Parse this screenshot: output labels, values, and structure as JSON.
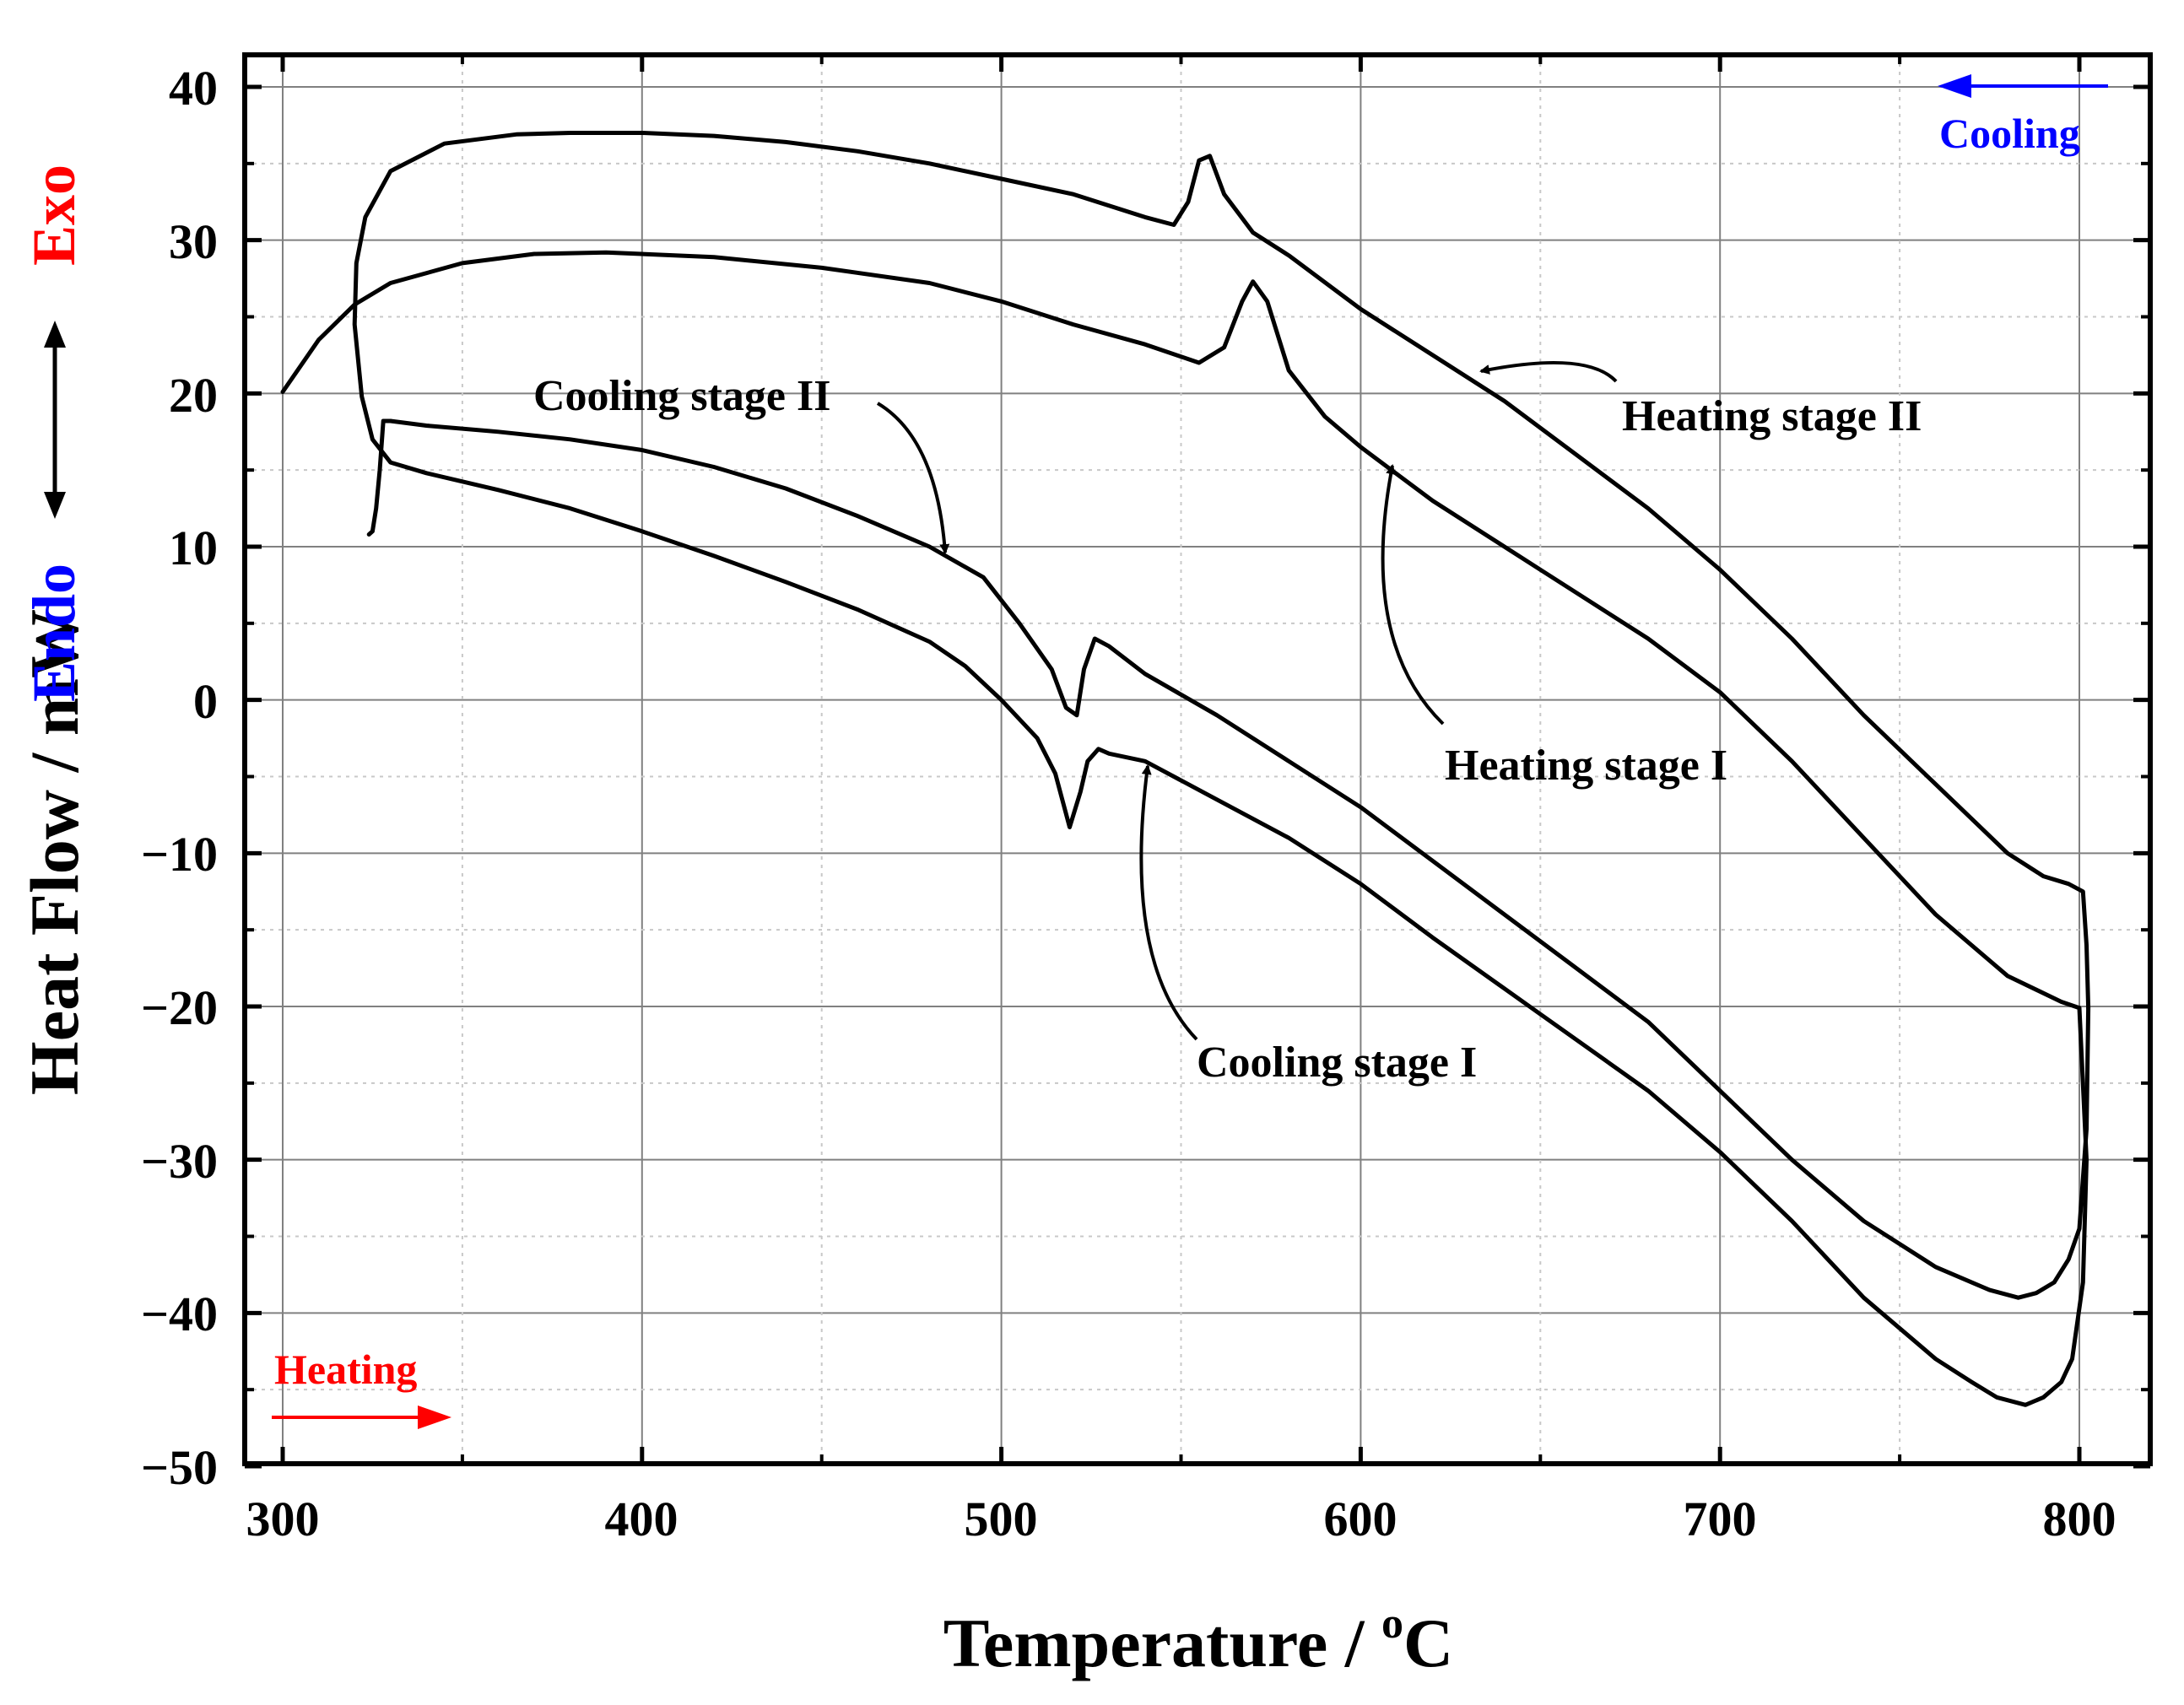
{
  "chart_data": {
    "type": "line",
    "title": "",
    "xlabel": "Temperature / °C",
    "xlabel_main": "Temperature / ",
    "xlabel_sup": "o",
    "xlabel_unit": "C",
    "ylabel": "Heat Flow / mW",
    "xlim": [
      288,
      822
    ],
    "ylim": [
      -50,
      43
    ],
    "x_ticks": [
      300,
      400,
      500,
      600,
      700,
      800
    ],
    "x_tick_labels": [
      "300",
      "400",
      "500",
      "600",
      "700",
      "800"
    ],
    "y_ticks": [
      40,
      30,
      20,
      10,
      0,
      -10,
      -20,
      -30,
      -40,
      -50
    ],
    "y_tick_labels": [
      "40",
      "30",
      "20",
      "10",
      "0",
      "−10",
      "−20",
      "−30",
      "−40",
      "−50"
    ],
    "grid": true,
    "colors": {
      "curve": "#000000",
      "heating": "#ff0000",
      "cooling": "#0000ff",
      "grid": "#808080"
    },
    "series": [
      {
        "name": "Heating stage I",
        "x": [
          300,
          310,
          320,
          330,
          350,
          370,
          390,
          420,
          450,
          480,
          500,
          520,
          540,
          555,
          562,
          567,
          570,
          574,
          580,
          590,
          600,
          620,
          650,
          680,
          700,
          720,
          740,
          760,
          780,
          795,
          800
        ],
        "y": [
          20.1,
          23.5,
          25.8,
          27.2,
          28.5,
          29.1,
          29.2,
          28.9,
          28.2,
          27.2,
          26.0,
          24.5,
          23.2,
          22.0,
          23.0,
          26.0,
          27.3,
          26.0,
          21.5,
          18.5,
          16.5,
          13.0,
          8.5,
          4.0,
          0.5,
          -4.0,
          -9.0,
          -14.0,
          -18.0,
          -19.7,
          -20.1
        ]
      },
      {
        "name": "Cooling stage I",
        "x": [
          800,
          802,
          801,
          798,
          795,
          790,
          785,
          777,
          770,
          760,
          740,
          720,
          700,
          680,
          650,
          620,
          600,
          580,
          560,
          540,
          530,
          527,
          524,
          522,
          519,
          515,
          510,
          500,
          490,
          480,
          460,
          440,
          420,
          400,
          380,
          360,
          340,
          330,
          325,
          322,
          320,
          320.5,
          323,
          330,
          345,
          365,
          380,
          400,
          420,
          440,
          460,
          480,
          500,
          520,
          540,
          548,
          552,
          555,
          558,
          562,
          570,
          580,
          600,
          620,
          640,
          660,
          680,
          700,
          720,
          740,
          760,
          780,
          790,
          797,
          801,
          802,
          802.5
        ],
        "y": [
          -20.1,
          -30,
          -38,
          -43,
          -44.5,
          -45.5,
          -46,
          -45.5,
          -44.5,
          -43.0,
          -39.0,
          -34.0,
          -29.5,
          -25.5,
          -20.5,
          -15.5,
          -12.0,
          -9.0,
          -6.5,
          -4.0,
          -3.5,
          -3.2,
          -4.0,
          -6.0,
          -8.3,
          -4.8,
          -2.5,
          0.0,
          2.2,
          3.8,
          5.9,
          7.7,
          9.4,
          11.0,
          12.5,
          13.7,
          14.8,
          15.5,
          17.0,
          19.8,
          24.5,
          28.5,
          31.5,
          34.5,
          36.3,
          36.9,
          37.0,
          37.0,
          36.8,
          36.4,
          35.8,
          35.0,
          34.0,
          33.0,
          31.5,
          31.0,
          32.5,
          35.2,
          35.5,
          33.0,
          30.5,
          29.0,
          25.5,
          22.5,
          19.5,
          16.0,
          12.5,
          8.5,
          4.0,
          -1.0,
          -5.5,
          -10.0,
          -11.5,
          -12.0,
          -12.5,
          -16.0,
          -20.1
        ]
      },
      {
        "name": "Cooling stage II",
        "x": [
          802.5,
          802,
          800,
          797,
          793,
          788,
          783,
          775,
          760,
          740,
          720,
          700,
          680,
          660,
          640,
          620,
          600,
          580,
          560,
          540,
          530,
          526,
          523,
          521,
          518,
          514,
          505,
          495,
          480,
          460,
          440,
          420,
          400,
          380,
          360,
          340,
          330
        ],
        "y": [
          -20.1,
          -28,
          -34.5,
          -36.5,
          -38,
          -38.7,
          -39,
          -38.5,
          -37,
          -34,
          -30,
          -25.5,
          -21,
          -17.5,
          -14,
          -10.5,
          -7.0,
          -4.0,
          -1.0,
          1.7,
          3.5,
          4.0,
          2.0,
          -1.0,
          -0.5,
          2.0,
          5.0,
          8.0,
          10.0,
          12.0,
          13.8,
          15.2,
          16.3,
          17.0,
          17.5,
          17.9,
          18.2
        ]
      },
      {
        "name": "Heating stage II",
        "x": [
          330,
          328,
          327,
          326,
          325,
          324
        ],
        "y": [
          18.2,
          18.2,
          15.0,
          12.5,
          11.0,
          10.8
        ]
      }
    ],
    "annotations": [
      {
        "text": "Cooling stage II",
        "points_to_x": 484,
        "points_to_y": 9.6
      },
      {
        "text": "Heating stage II",
        "points_to_x": 632,
        "points_to_y": 21.5
      },
      {
        "text": "Heating stage I",
        "points_to_x": 612,
        "points_to_y": 15.0
      },
      {
        "text": "Cooling stage I",
        "points_to_x": 543,
        "points_to_y": -4.5
      }
    ],
    "direction_labels": {
      "heating": "Heating",
      "cooling": "Cooling",
      "exo": "Exo",
      "endo": "Endo"
    }
  }
}
